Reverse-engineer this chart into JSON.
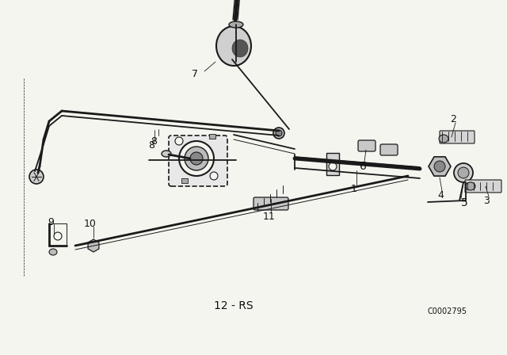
{
  "background_color": "#f5f5f0",
  "line_color": "#1a1a1a",
  "label_color": "#111111",
  "watermark": "C0002795",
  "subtitle": "12 - RS",
  "fig_w": 6.4,
  "fig_h": 4.48,
  "dpi": 100
}
